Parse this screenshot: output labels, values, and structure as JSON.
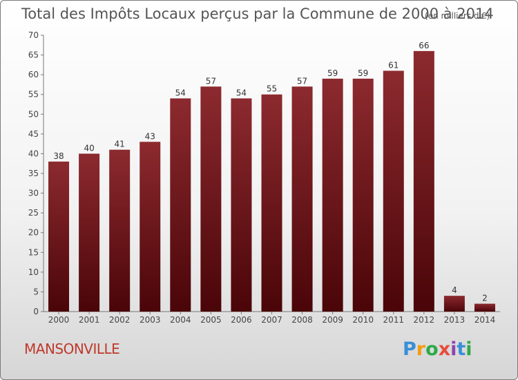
{
  "chart_data": {
    "type": "bar",
    "title": "Total des Impôts Locaux perçus par la Commune de 2000 à 2014",
    "unit_label": "(en milliers d'€)",
    "categories": [
      "2000",
      "2001",
      "2002",
      "2003",
      "2004",
      "2005",
      "2006",
      "2007",
      "2008",
      "2009",
      "2010",
      "2011",
      "2012",
      "2013",
      "2014"
    ],
    "values": [
      38,
      40,
      41,
      43,
      54,
      57,
      54,
      55,
      57,
      59,
      59,
      61,
      66,
      4,
      2
    ],
    "ylim": [
      0,
      70
    ],
    "yticks": [
      0,
      5,
      10,
      15,
      20,
      25,
      30,
      35,
      40,
      45,
      50,
      55,
      60,
      65,
      70
    ],
    "grid": false,
    "bar_color": "#7a1a1f"
  },
  "commune_name": "MANSONVILLE",
  "logo": {
    "letters": [
      "P",
      "r",
      "o",
      "x",
      "i",
      "t",
      "i"
    ],
    "colors": [
      "#3a8fd6",
      "#f39c12",
      "#2eaa4a",
      "#e74c3c",
      "#8e44ad",
      "#3a8fd6",
      "#2eaa4a"
    ]
  }
}
